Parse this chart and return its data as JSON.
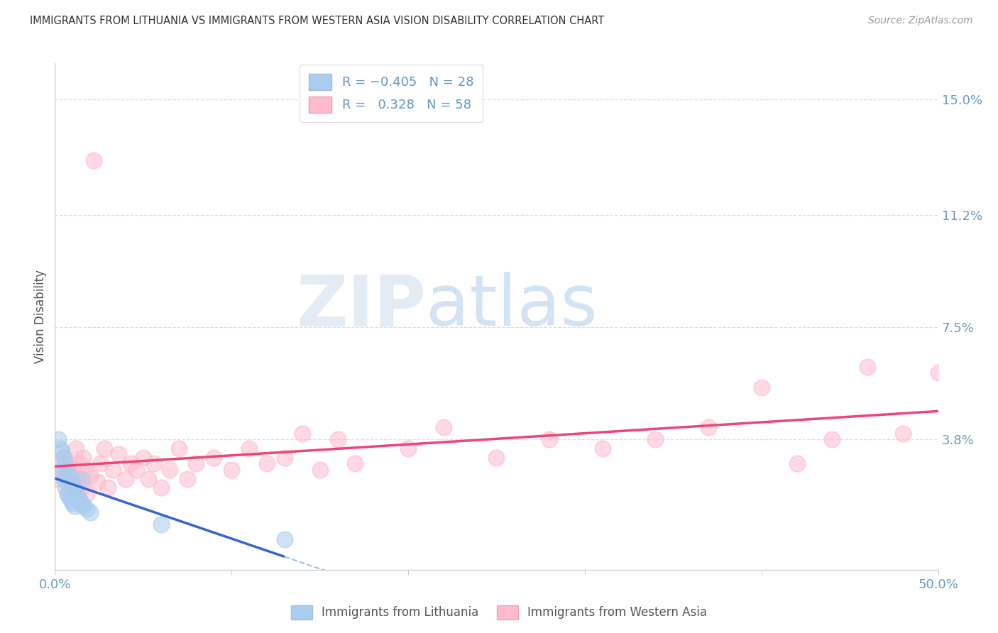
{
  "title": "IMMIGRANTS FROM LITHUANIA VS IMMIGRANTS FROM WESTERN ASIA VISION DISABILITY CORRELATION CHART",
  "source": "Source: ZipAtlas.com",
  "ylabel": "Vision Disability",
  "xlim": [
    0.0,
    0.5
  ],
  "ylim": [
    -0.005,
    0.162
  ],
  "xtick_vals": [
    0.0,
    0.1,
    0.2,
    0.3,
    0.4,
    0.5
  ],
  "xtick_labels": [
    "0.0%",
    "",
    "",
    "",
    "",
    "50.0%"
  ],
  "yticks_right": [
    0.038,
    0.075,
    0.112,
    0.15
  ],
  "yticklabels_right": [
    "3.8%",
    "7.5%",
    "11.2%",
    "15.0%"
  ],
  "background_color": "#ffffff",
  "grid_color": "#cccccc",
  "watermark_zip": "ZIP",
  "watermark_atlas": "atlas",
  "color_lithuania": "#aaccee",
  "color_western_asia": "#ffbbcc",
  "color_trend_lithuania": "#3366cc",
  "color_trend_western_asia": "#ee4477",
  "label_lithuania": "Immigrants from Lithuania",
  "label_western_asia": "Immigrants from Western Asia",
  "tick_color": "#6699cc",
  "text_color": "#333333",
  "source_color": "#999999",
  "lith_x": [
    0.002,
    0.003,
    0.004,
    0.004,
    0.005,
    0.005,
    0.006,
    0.006,
    0.007,
    0.007,
    0.008,
    0.008,
    0.009,
    0.009,
    0.01,
    0.01,
    0.011,
    0.011,
    0.012,
    0.013,
    0.014,
    0.015,
    0.015,
    0.016,
    0.018,
    0.02,
    0.06,
    0.13
  ],
  "lith_y": [
    0.038,
    0.035,
    0.034,
    0.028,
    0.032,
    0.025,
    0.03,
    0.022,
    0.028,
    0.02,
    0.026,
    0.019,
    0.025,
    0.018,
    0.023,
    0.017,
    0.022,
    0.016,
    0.02,
    0.019,
    0.018,
    0.017,
    0.025,
    0.016,
    0.015,
    0.014,
    0.01,
    0.005
  ],
  "west_x": [
    0.002,
    0.003,
    0.004,
    0.005,
    0.006,
    0.007,
    0.008,
    0.009,
    0.01,
    0.011,
    0.012,
    0.013,
    0.014,
    0.015,
    0.016,
    0.017,
    0.018,
    0.02,
    0.022,
    0.024,
    0.026,
    0.028,
    0.03,
    0.033,
    0.036,
    0.04,
    0.043,
    0.046,
    0.05,
    0.053,
    0.056,
    0.06,
    0.065,
    0.07,
    0.075,
    0.08,
    0.09,
    0.1,
    0.11,
    0.12,
    0.13,
    0.14,
    0.15,
    0.16,
    0.17,
    0.2,
    0.22,
    0.25,
    0.28,
    0.31,
    0.34,
    0.37,
    0.4,
    0.42,
    0.44,
    0.46,
    0.48,
    0.5
  ],
  "west_y": [
    0.025,
    0.03,
    0.028,
    0.032,
    0.026,
    0.02,
    0.03,
    0.022,
    0.028,
    0.024,
    0.035,
    0.025,
    0.03,
    0.022,
    0.032,
    0.028,
    0.02,
    0.026,
    0.13,
    0.024,
    0.03,
    0.035,
    0.022,
    0.028,
    0.033,
    0.025,
    0.03,
    0.028,
    0.032,
    0.025,
    0.03,
    0.022,
    0.028,
    0.035,
    0.025,
    0.03,
    0.032,
    0.028,
    0.035,
    0.03,
    0.032,
    0.04,
    0.028,
    0.038,
    0.03,
    0.035,
    0.042,
    0.032,
    0.038,
    0.035,
    0.038,
    0.042,
    0.055,
    0.03,
    0.038,
    0.062,
    0.04,
    0.06
  ]
}
